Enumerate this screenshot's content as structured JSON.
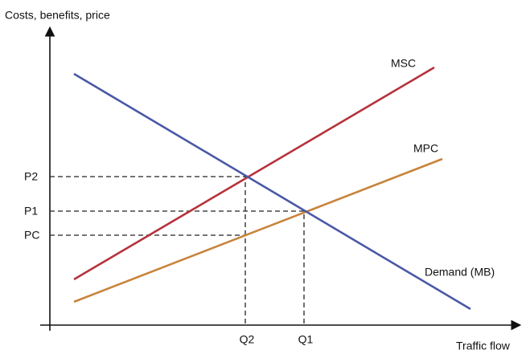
{
  "diagram": {
    "y_axis_label": "Costs, benefits, price",
    "x_axis_label": "Traffic flow",
    "curves": [
      {
        "label": "MSC",
        "color": "#b5323b"
      },
      {
        "label": "MPC",
        "color": "#c8843c"
      },
      {
        "label": "Demand (MB)",
        "color": "#4a58a6"
      }
    ],
    "price_levels": [
      "P2",
      "P1",
      "PC"
    ],
    "quantity_levels": [
      "Q2",
      "Q1"
    ]
  }
}
